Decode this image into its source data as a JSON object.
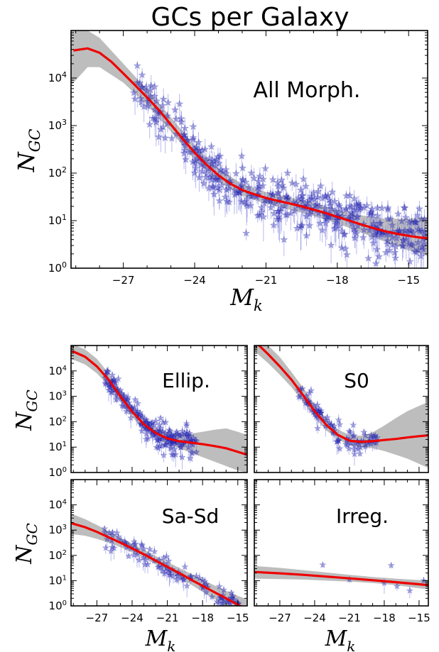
{
  "figure_title": "GCs per Galaxy",
  "chart_data": [
    {
      "type": "scatter",
      "panel": "all",
      "annotation": "All Morph.",
      "xlabel": "M_k",
      "ylabel": "N_GC",
      "xlim": [
        -29.2,
        -14.2
      ],
      "ylim": [
        1,
        100000
      ],
      "yscale": "log",
      "xticks": [
        -27,
        -24,
        -21,
        -18,
        -15
      ],
      "ytick_labels": [
        "10^0",
        "10^1",
        "10^2",
        "10^3",
        "10^4"
      ],
      "colors": {
        "points": "#1a1aa8",
        "fit": "#ee0000",
        "band": "#bdbdbd"
      },
      "fit": {
        "x": [
          -29.1,
          -28.5,
          -28,
          -27.5,
          -27,
          -26.5,
          -26,
          -25.5,
          -25,
          -24.5,
          -24,
          -23.5,
          -23,
          -22.5,
          -22,
          -21.5,
          -21,
          -20.5,
          -20,
          -19.5,
          -19,
          -18.5,
          -18,
          -17.5,
          -17,
          -16.5,
          -16,
          -15.5,
          -15,
          -14.5,
          -14.2
        ],
        "y": [
          38000,
          42000,
          34000,
          22000,
          12500,
          7000,
          3900,
          2100,
          1050,
          520,
          270,
          150,
          90,
          60,
          44,
          36,
          30,
          26,
          23,
          20,
          17,
          14.5,
          12,
          10,
          8.3,
          7,
          6,
          5.3,
          4.8,
          4.4,
          4.3
        ]
      },
      "band": {
        "x": [
          -29.2,
          -28.5,
          -28,
          -27,
          -26,
          -25,
          -24,
          -23,
          -22,
          -21,
          -20,
          -19,
          -18,
          -17,
          -16,
          -15,
          -14.2
        ],
        "lower": [
          7000,
          17000,
          17000,
          8000,
          2700,
          750,
          190,
          66,
          33,
          23,
          17,
          12.5,
          8.8,
          5.6,
          3.6,
          2.4,
          1.8
        ],
        "upper": [
          200000,
          100000,
          70000,
          20000,
          5700,
          1500,
          380,
          125,
          59,
          40,
          31,
          24,
          17,
          13,
          11,
          11,
          12
        ]
      }
    },
    {
      "type": "scatter",
      "panel": "elliptical",
      "annotation": "Ellip.",
      "xlabel": "",
      "ylabel": "N_GC",
      "xlim": [
        -29.2,
        -14.2
      ],
      "ylim": [
        1,
        100000
      ],
      "yscale": "log",
      "xticks": [],
      "ytick_labels": [
        "10^0",
        "10^1",
        "10^2",
        "10^3",
        "10^4"
      ],
      "fit": {
        "x": [
          -29.1,
          -28,
          -27,
          -26,
          -25,
          -24,
          -23,
          -22,
          -21,
          -20,
          -19,
          -18,
          -17,
          -16,
          -15,
          -14.2
        ],
        "y": [
          60000,
          36000,
          15000,
          4500,
          1000,
          250,
          80,
          36,
          22,
          17,
          15,
          13,
          11,
          9,
          6.5,
          5
        ]
      },
      "band": {
        "x": [
          -29.2,
          -28,
          -27,
          -26,
          -25,
          -24,
          -23,
          -22,
          -21,
          -20,
          -19,
          -18,
          -17,
          -16,
          -15,
          -14.2
        ],
        "lower": [
          30000,
          18000,
          8000,
          2500,
          600,
          150,
          50,
          22,
          13,
          9,
          6,
          4,
          2.7,
          1.8,
          1.2,
          1
        ],
        "upper": [
          120000,
          70000,
          30000,
          8000,
          1800,
          420,
          130,
          60,
          38,
          32,
          34,
          40,
          48,
          55,
          40,
          30
        ]
      }
    },
    {
      "type": "scatter",
      "panel": "s0",
      "annotation": "S0",
      "xlabel": "",
      "ylabel": "",
      "xlim": [
        -29.2,
        -14.2
      ],
      "ylim": [
        1,
        100000
      ],
      "yscale": "log",
      "xticks": [],
      "fit": {
        "x": [
          -29.2,
          -28.5,
          -28,
          -27,
          -26,
          -25,
          -24,
          -23,
          -22,
          -21,
          -20,
          -19,
          -18,
          -17,
          -16,
          -15,
          -14.2
        ],
        "y": [
          150000,
          75000,
          45000,
          15000,
          4500,
          1100,
          260,
          75,
          30,
          18,
          16,
          17,
          19,
          21,
          24,
          27,
          29
        ]
      },
      "band": {
        "x": [
          -29.2,
          -28,
          -27,
          -26,
          -25,
          -24,
          -23,
          -22,
          -21,
          -20,
          -19,
          -18,
          -17,
          -16,
          -15,
          -14.2
        ],
        "lower": [
          60000,
          20000,
          7000,
          2300,
          600,
          150,
          45,
          20,
          12,
          10,
          9,
          7,
          5,
          3.5,
          2.2,
          1.5
        ],
        "upper": [
          400000,
          100000,
          35000,
          9000,
          2200,
          480,
          130,
          50,
          30,
          28,
          38,
          70,
          140,
          260,
          420,
          600
        ]
      }
    },
    {
      "type": "scatter",
      "panel": "spiral",
      "annotation": "Sa-Sd",
      "xlabel": "M_k",
      "ylabel": "N_GC",
      "xlim": [
        -29.2,
        -14.2
      ],
      "ylim": [
        1,
        100000
      ],
      "yscale": "log",
      "xticks": [
        -27,
        -24,
        -21,
        -18,
        -15
      ],
      "ytick_labels": [
        "10^0",
        "10^1",
        "10^2",
        "10^3",
        "10^4"
      ],
      "fit": {
        "x": [
          -29.2,
          -28,
          -27,
          -26,
          -25,
          -24,
          -23,
          -22,
          -21,
          -20,
          -19,
          -18,
          -17,
          -16,
          -15,
          -14.6
        ],
        "y": [
          1900,
          1300,
          850,
          520,
          320,
          190,
          110,
          62,
          35,
          20,
          11,
          6.2,
          3.5,
          2,
          1.1,
          0.9
        ]
      },
      "band": {
        "x": [
          -29.2,
          -28,
          -27,
          -26,
          -25,
          -24,
          -23,
          -22,
          -21,
          -20,
          -19,
          -18,
          -17,
          -16,
          -15,
          -14.2
        ],
        "lower": [
          700,
          600,
          450,
          320,
          210,
          130,
          78,
          44,
          24,
          13,
          7,
          3.6,
          1.9,
          1,
          0.5,
          0.3
        ],
        "upper": [
          4500,
          2700,
          1600,
          900,
          500,
          290,
          165,
          95,
          55,
          32,
          19,
          11,
          6.5,
          4,
          2.5,
          1.8
        ]
      }
    },
    {
      "type": "scatter",
      "panel": "irregular",
      "annotation": "Irreg.",
      "xlabel": "M_k",
      "ylabel": "",
      "xlim": [
        -29.2,
        -14.2
      ],
      "ylim": [
        1,
        100000
      ],
      "yscale": "log",
      "xticks": [
        -27,
        -24,
        -21,
        -18,
        -15
      ],
      "fit": {
        "x": [
          -29.2,
          -27,
          -25,
          -23,
          -21,
          -19,
          -17,
          -15,
          -14.2
        ],
        "y": [
          22,
          19.5,
          17,
          14.5,
          12.3,
          10.4,
          8.7,
          7.2,
          6.6
        ]
      },
      "band": {
        "x": [
          -29.2,
          -27,
          -25,
          -23,
          -21,
          -19,
          -17,
          -15,
          -14.2
        ],
        "lower": [
          12,
          11.5,
          11,
          10,
          9.2,
          8,
          6.6,
          5,
          4.5
        ],
        "upper": [
          38,
          32,
          26,
          21,
          17,
          14,
          12,
          10.5,
          10
        ]
      },
      "points": [
        [
          -23.3,
          42,
          10
        ],
        [
          -21.0,
          11,
          3
        ],
        [
          -18.0,
          8,
          5
        ],
        [
          -17.4,
          40,
          10
        ],
        [
          -16.9,
          6,
          2
        ],
        [
          -15.8,
          4,
          2
        ],
        [
          -14.6,
          10,
          4
        ]
      ]
    }
  ]
}
